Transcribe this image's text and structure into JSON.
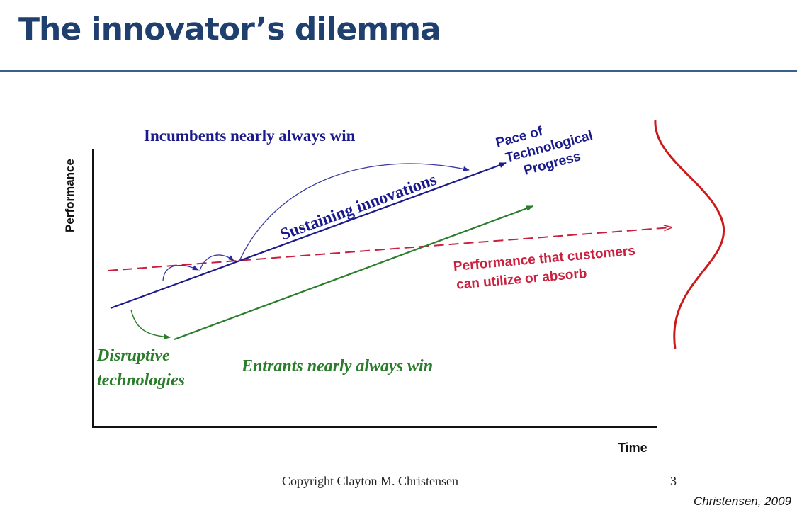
{
  "slide": {
    "title": "The innovator’s dilemma",
    "copyright": "Copyright Clayton M. Christensen",
    "page_number": "3",
    "source": "Christensen, 2009"
  },
  "diagram": {
    "axis": {
      "y_label": "Performance",
      "x_label": "Time"
    },
    "labels": {
      "incumbents": "Incumbents nearly always win",
      "sustaining": "Sustaining innovations",
      "pace_line1": "Pace of",
      "pace_line2": "Technological",
      "pace_line3": "Progress",
      "customers_line1": "Performance that customers",
      "customers_line2": "can utilize or absorb",
      "disruptive_line1": "Disruptive",
      "disruptive_line2": "technologies",
      "entrants": "Entrants nearly always win"
    },
    "colors": {
      "sustaining": "#1a1a8c",
      "disruptive": "#2a7d2a",
      "customers": "#c8203e",
      "title": "#1f3f6e"
    }
  }
}
